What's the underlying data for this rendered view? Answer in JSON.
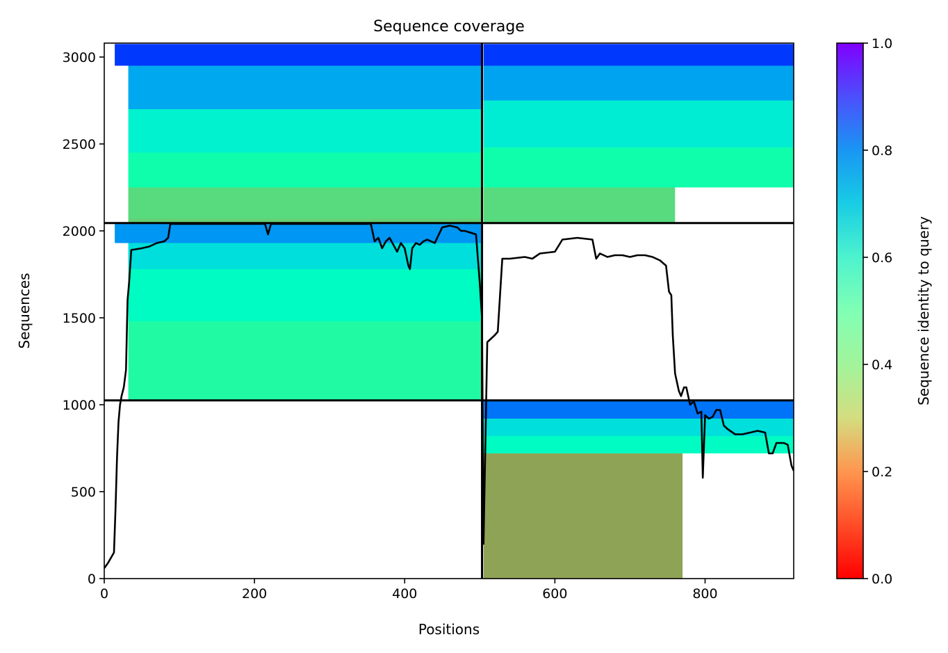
{
  "chart_data": {
    "type": "heatmap",
    "title": "Sequence coverage",
    "xlabel": "Positions",
    "ylabel": "Sequences",
    "xlim": [
      0,
      918
    ],
    "ylim": [
      0,
      3080
    ],
    "xticks": [
      0,
      200,
      400,
      600,
      800
    ],
    "yticks": [
      0,
      500,
      1000,
      1500,
      2000,
      2500,
      3000
    ],
    "grid": false,
    "colorbar": {
      "label": "Sequence identity to query",
      "range": [
        0.0,
        1.0
      ],
      "ticks": [
        0.0,
        0.2,
        0.4,
        0.6,
        0.8,
        1.0
      ],
      "tick_labels": [
        "0.0",
        "0.2",
        "0.4",
        "0.6",
        "0.8",
        "1.0"
      ],
      "colormap": "rainbow_r"
    },
    "block_dividers": {
      "x": [
        503
      ],
      "y": [
        1025,
        2045
      ]
    },
    "blocks": [
      {
        "x": [
          32,
          503
        ],
        "y": [
          2045,
          2070
        ],
        "identity": 0.3
      },
      {
        "x": [
          32,
          503
        ],
        "y": [
          2070,
          2250
        ],
        "identity": 0.33
      },
      {
        "x": [
          32,
          503
        ],
        "y": [
          2250,
          2450
        ],
        "identity": 0.47
      },
      {
        "x": [
          32,
          503
        ],
        "y": [
          2450,
          2700
        ],
        "identity": 0.6
      },
      {
        "x": [
          32,
          503
        ],
        "y": [
          2700,
          2950
        ],
        "identity": 0.77
      },
      {
        "x": [
          14,
          503
        ],
        "y": [
          2950,
          3075
        ],
        "identity": 0.93
      },
      {
        "x": [
          505,
          760
        ],
        "y": [
          2045,
          2250
        ],
        "identity": 0.33
      },
      {
        "x": [
          505,
          918
        ],
        "y": [
          2250,
          2480
        ],
        "identity": 0.47
      },
      {
        "x": [
          505,
          918
        ],
        "y": [
          2480,
          2750
        ],
        "identity": 0.62
      },
      {
        "x": [
          505,
          918
        ],
        "y": [
          2750,
          2950
        ],
        "identity": 0.78
      },
      {
        "x": [
          505,
          918
        ],
        "y": [
          2950,
          3075
        ],
        "identity": 0.93
      },
      {
        "x": [
          32,
          503
        ],
        "y": [
          1025,
          1480
        ],
        "identity": 0.44
      },
      {
        "x": [
          32,
          503
        ],
        "y": [
          1480,
          1780
        ],
        "identity": 0.55
      },
      {
        "x": [
          32,
          503
        ],
        "y": [
          1780,
          1930
        ],
        "identity": 0.66
      },
      {
        "x": [
          14,
          503
        ],
        "y": [
          1930,
          2045
        ],
        "identity": 0.8
      },
      {
        "x": [
          505,
          770
        ],
        "y": [
          0,
          720
        ],
        "identity": 0.22
      },
      {
        "x": [
          505,
          918
        ],
        "y": [
          720,
          820
        ],
        "identity": 0.55
      },
      {
        "x": [
          505,
          918
        ],
        "y": [
          820,
          920
        ],
        "identity": 0.66
      },
      {
        "x": [
          505,
          918
        ],
        "y": [
          920,
          1025
        ],
        "identity": 0.85
      }
    ],
    "coverage_line": {
      "x": [
        0,
        5,
        13,
        15,
        17,
        19,
        21,
        23,
        26,
        29,
        31,
        33,
        36,
        50,
        60,
        70,
        80,
        85,
        88,
        92,
        100,
        150,
        200,
        214,
        218,
        222,
        230,
        300,
        355,
        360,
        365,
        370,
        375,
        380,
        385,
        390,
        395,
        400,
        405,
        407,
        410,
        415,
        420,
        425,
        430,
        440,
        450,
        460,
        470,
        475,
        480,
        495,
        500,
        503,
        505,
        510,
        520,
        524,
        530,
        540,
        560,
        570,
        580,
        600,
        610,
        630,
        650,
        655,
        660,
        670,
        680,
        690,
        700,
        710,
        720,
        730,
        740,
        748,
        752,
        755,
        757,
        760,
        765,
        768,
        772,
        775,
        780,
        785,
        790,
        795,
        797,
        800,
        805,
        810,
        815,
        820,
        825,
        830,
        840,
        850,
        860,
        870,
        880,
        885,
        890,
        895,
        900,
        905,
        910,
        915,
        918
      ],
      "y": [
        60,
        90,
        150,
        400,
        700,
        900,
        1000,
        1050,
        1100,
        1200,
        1600,
        1700,
        1890,
        1900,
        1910,
        1930,
        1940,
        1960,
        2040,
        2040,
        2040,
        2040,
        2040,
        2040,
        1980,
        2040,
        2040,
        2040,
        2040,
        1940,
        1960,
        1900,
        1940,
        1960,
        1920,
        1880,
        1930,
        1900,
        1800,
        1780,
        1900,
        1930,
        1920,
        1940,
        1950,
        1930,
        2020,
        2030,
        2020,
        2000,
        2000,
        1980,
        1700,
        1500,
        200,
        1360,
        1400,
        1420,
        1840,
        1840,
        1850,
        1840,
        1870,
        1880,
        1950,
        1960,
        1950,
        1840,
        1870,
        1850,
        1860,
        1860,
        1850,
        1860,
        1860,
        1850,
        1830,
        1800,
        1650,
        1630,
        1400,
        1180,
        1080,
        1050,
        1100,
        1100,
        1000,
        1020,
        950,
        960,
        580,
        940,
        920,
        930,
        970,
        970,
        880,
        860,
        830,
        830,
        840,
        850,
        840,
        720,
        720,
        780,
        780,
        780,
        770,
        650,
        620
      ]
    }
  }
}
